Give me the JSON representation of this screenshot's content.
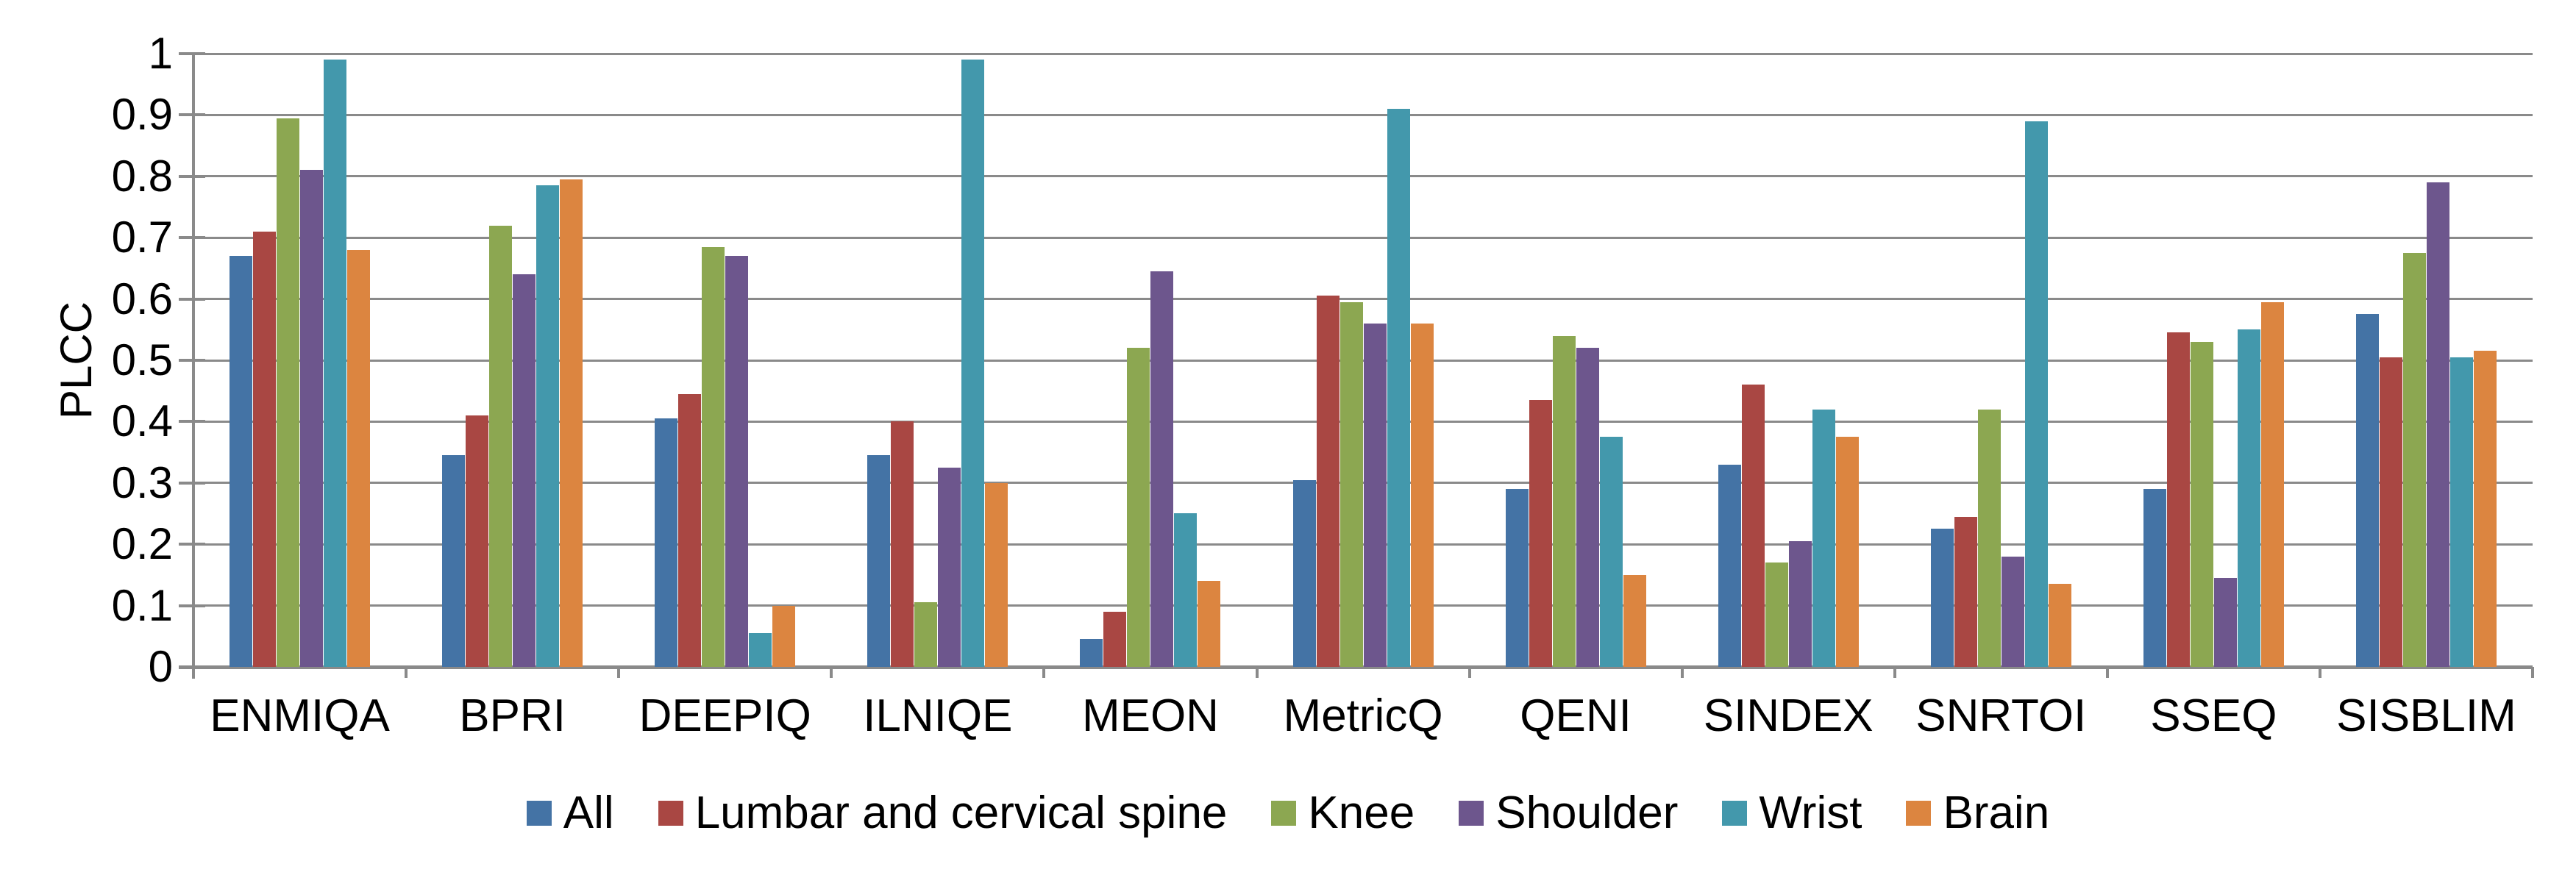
{
  "chart_data": {
    "type": "bar",
    "title": "",
    "xlabel": "",
    "ylabel": "PLCC",
    "ylim": [
      0,
      1
    ],
    "ytick_step": 0.1,
    "yticks": [
      "0",
      "0.1",
      "0.2",
      "0.3",
      "0.4",
      "0.5",
      "0.6",
      "0.7",
      "0.8",
      "0.9",
      "1"
    ],
    "grid": "horizontal",
    "legend_position": "bottom",
    "axis_color": "#8a8a8a",
    "background_color": "#ffffff",
    "categories": [
      "ENMIQA",
      "BPRI",
      "DEEPIQ",
      "ILNIQE",
      "MEON",
      "MetricQ",
      "QENI",
      "SINDEX",
      "SNRTOI",
      "SSEQ",
      "SISBLIM"
    ],
    "series": [
      {
        "name": "All",
        "color": "#4473a5",
        "values": [
          0.67,
          0.345,
          0.405,
          0.345,
          0.045,
          0.305,
          0.29,
          0.33,
          0.225,
          0.29,
          0.575
        ]
      },
      {
        "name": "Lumbar and cervical spine",
        "color": "#a94743",
        "values": [
          0.71,
          0.41,
          0.445,
          0.4,
          0.09,
          0.605,
          0.435,
          0.46,
          0.245,
          0.545,
          0.505
        ]
      },
      {
        "name": "Knee",
        "color": "#8ca751",
        "values": [
          0.895,
          0.72,
          0.685,
          0.105,
          0.52,
          0.595,
          0.54,
          0.17,
          0.42,
          0.53,
          0.675
        ]
      },
      {
        "name": "Shoulder",
        "color": "#6d568d",
        "values": [
          0.81,
          0.64,
          0.67,
          0.325,
          0.645,
          0.56,
          0.52,
          0.205,
          0.18,
          0.145,
          0.79
        ]
      },
      {
        "name": "Wrist",
        "color": "#4398ac",
        "values": [
          0.99,
          0.785,
          0.055,
          0.99,
          0.25,
          0.91,
          0.375,
          0.42,
          0.89,
          0.55,
          0.505
        ]
      },
      {
        "name": "Brain",
        "color": "#dc8540",
        "values": [
          0.68,
          0.795,
          0.1,
          0.3,
          0.14,
          0.56,
          0.15,
          0.375,
          0.135,
          0.595,
          0.515
        ]
      }
    ]
  }
}
